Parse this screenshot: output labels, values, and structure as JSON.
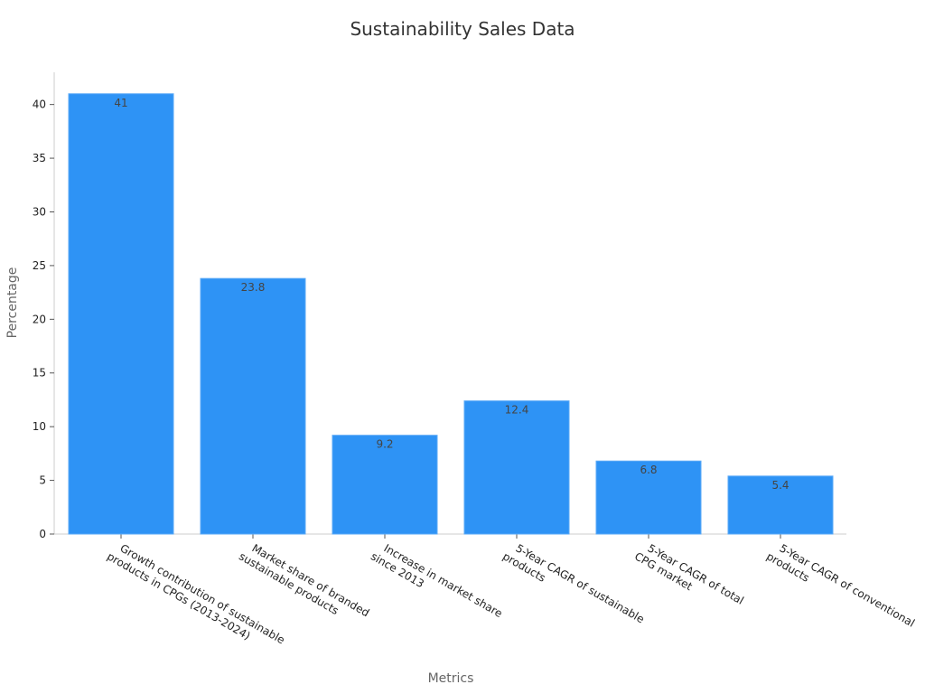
{
  "chart_data": {
    "type": "bar",
    "title": "Sustainability Sales Data",
    "xlabel": "Metrics",
    "ylabel": "Percentage",
    "categories": [
      [
        "Growth contribution of sustainable",
        "products in CPGs (2013-2024)"
      ],
      [
        "Market share of branded",
        "sustainable products"
      ],
      [
        "Increase in market share",
        "since 2013"
      ],
      [
        "5-Year CAGR of sustainable",
        "products"
      ],
      [
        "5-Year CAGR of total",
        "CPG market"
      ],
      [
        "5-Year CAGR of conventional",
        "products"
      ]
    ],
    "values": [
      41,
      23.8,
      9.2,
      12.4,
      6.8,
      5.4
    ],
    "ylim": [
      0,
      43
    ],
    "yticks": [
      0,
      5,
      10,
      15,
      20,
      25,
      30,
      35,
      40
    ],
    "grid": false,
    "bar_color": "#2e93f5"
  }
}
